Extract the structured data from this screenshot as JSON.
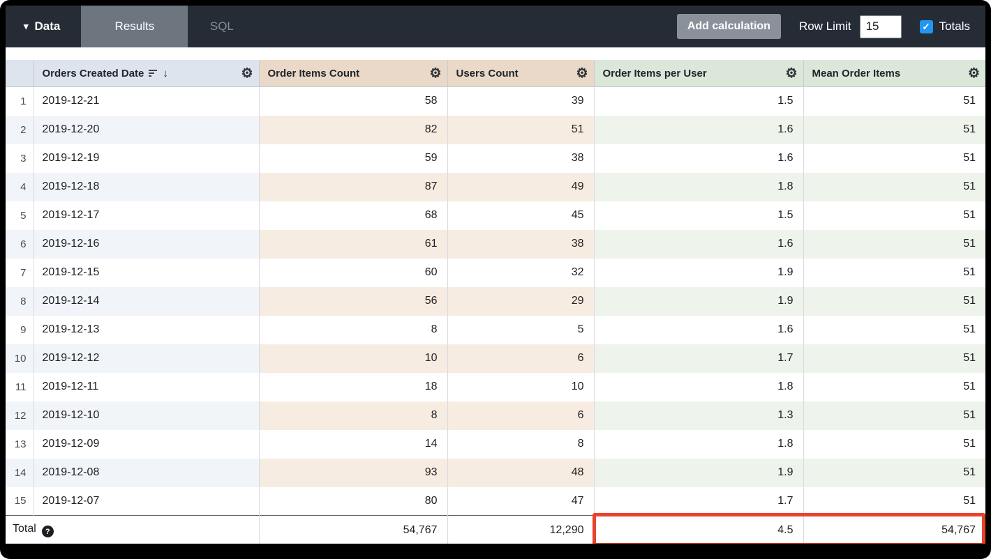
{
  "toolbar": {
    "data_tab": "Data",
    "results_tab": "Results",
    "sql_tab": "SQL",
    "add_calculation": "Add calculation",
    "row_limit_label": "Row Limit",
    "row_limit_value": "15",
    "totals_label": "Totals",
    "totals_checked": true
  },
  "table": {
    "columns": [
      "Orders Created Date",
      "Order Items Count",
      "Users Count",
      "Order Items per User",
      "Mean Order Items"
    ],
    "sorted_column": "Orders Created Date",
    "sort_direction": "desc",
    "rows": [
      {
        "n": "1",
        "date": "2019-12-21",
        "order_items_count": "58",
        "users_count": "39",
        "order_items_per_user": "1.5",
        "mean_order_items": "51"
      },
      {
        "n": "2",
        "date": "2019-12-20",
        "order_items_count": "82",
        "users_count": "51",
        "order_items_per_user": "1.6",
        "mean_order_items": "51"
      },
      {
        "n": "3",
        "date": "2019-12-19",
        "order_items_count": "59",
        "users_count": "38",
        "order_items_per_user": "1.6",
        "mean_order_items": "51"
      },
      {
        "n": "4",
        "date": "2019-12-18",
        "order_items_count": "87",
        "users_count": "49",
        "order_items_per_user": "1.8",
        "mean_order_items": "51"
      },
      {
        "n": "5",
        "date": "2019-12-17",
        "order_items_count": "68",
        "users_count": "45",
        "order_items_per_user": "1.5",
        "mean_order_items": "51"
      },
      {
        "n": "6",
        "date": "2019-12-16",
        "order_items_count": "61",
        "users_count": "38",
        "order_items_per_user": "1.6",
        "mean_order_items": "51"
      },
      {
        "n": "7",
        "date": "2019-12-15",
        "order_items_count": "60",
        "users_count": "32",
        "order_items_per_user": "1.9",
        "mean_order_items": "51"
      },
      {
        "n": "8",
        "date": "2019-12-14",
        "order_items_count": "56",
        "users_count": "29",
        "order_items_per_user": "1.9",
        "mean_order_items": "51"
      },
      {
        "n": "9",
        "date": "2019-12-13",
        "order_items_count": "8",
        "users_count": "5",
        "order_items_per_user": "1.6",
        "mean_order_items": "51"
      },
      {
        "n": "10",
        "date": "2019-12-12",
        "order_items_count": "10",
        "users_count": "6",
        "order_items_per_user": "1.7",
        "mean_order_items": "51"
      },
      {
        "n": "11",
        "date": "2019-12-11",
        "order_items_count": "18",
        "users_count": "10",
        "order_items_per_user": "1.8",
        "mean_order_items": "51"
      },
      {
        "n": "12",
        "date": "2019-12-10",
        "order_items_count": "8",
        "users_count": "6",
        "order_items_per_user": "1.3",
        "mean_order_items": "51"
      },
      {
        "n": "13",
        "date": "2019-12-09",
        "order_items_count": "14",
        "users_count": "8",
        "order_items_per_user": "1.8",
        "mean_order_items": "51"
      },
      {
        "n": "14",
        "date": "2019-12-08",
        "order_items_count": "93",
        "users_count": "48",
        "order_items_per_user": "1.9",
        "mean_order_items": "51"
      },
      {
        "n": "15",
        "date": "2019-12-07",
        "order_items_count": "80",
        "users_count": "47",
        "order_items_per_user": "1.7",
        "mean_order_items": "51"
      }
    ],
    "total": {
      "label": "Total",
      "order_items_count": "54,767",
      "users_count": "12,290",
      "order_items_per_user": "4.5",
      "mean_order_items": "54,767"
    }
  },
  "colors": {
    "topbar_bg": "#262c36",
    "header_dimension": "#dde4ee",
    "header_measure_tan": "#ead9c8",
    "header_measure_green": "#dbe7d8",
    "checkbox_blue": "#2196f3",
    "highlight_red": "#e8432d"
  }
}
